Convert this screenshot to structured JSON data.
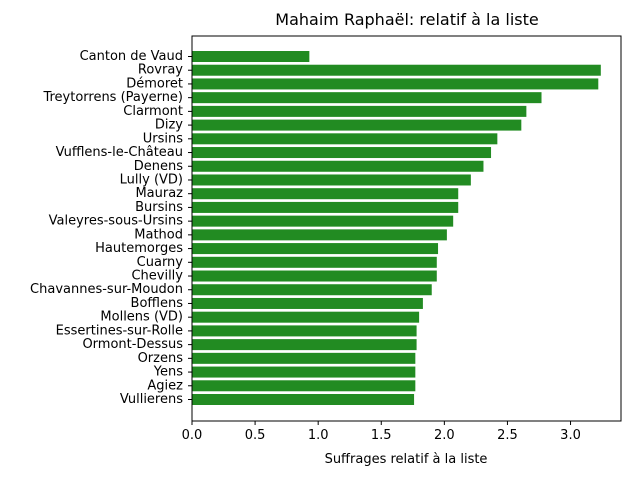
{
  "chart_data": {
    "type": "bar",
    "orientation": "horizontal",
    "title": "Mahaim Raphaël: relatif à la liste",
    "xlabel": "Suffrages relatif à la liste",
    "ylabel": "",
    "xlim": [
      0,
      3.4
    ],
    "xticks": [
      0.0,
      0.5,
      1.0,
      1.5,
      2.0,
      2.5,
      3.0
    ],
    "xtick_labels": [
      "0.0",
      "0.5",
      "1.0",
      "1.5",
      "2.0",
      "2.5",
      "3.0"
    ],
    "grid": false,
    "bar_color": "#228b22",
    "categories": [
      "Canton de Vaud",
      "Rovray",
      "Démoret",
      "Treytorrens (Payerne)",
      "Clarmont",
      "Dizy",
      "Ursins",
      "Vufflens-le-Château",
      "Denens",
      "Lully (VD)",
      "Mauraz",
      "Bursins",
      "Valeyres-sous-Ursins",
      "Mathod",
      "Hautemorges",
      "Cuarny",
      "Chevilly",
      "Chavannes-sur-Moudon",
      "Bofflens",
      "Mollens (VD)",
      "Essertines-sur-Rolle",
      "Ormont-Dessus",
      "Orzens",
      "Yens",
      "Agiez",
      "Vullierens"
    ],
    "values": [
      0.93,
      3.24,
      3.22,
      2.77,
      2.65,
      2.61,
      2.42,
      2.37,
      2.31,
      2.21,
      2.11,
      2.11,
      2.07,
      2.02,
      1.95,
      1.94,
      1.94,
      1.9,
      1.83,
      1.8,
      1.78,
      1.78,
      1.77,
      1.77,
      1.77,
      1.76
    ]
  }
}
